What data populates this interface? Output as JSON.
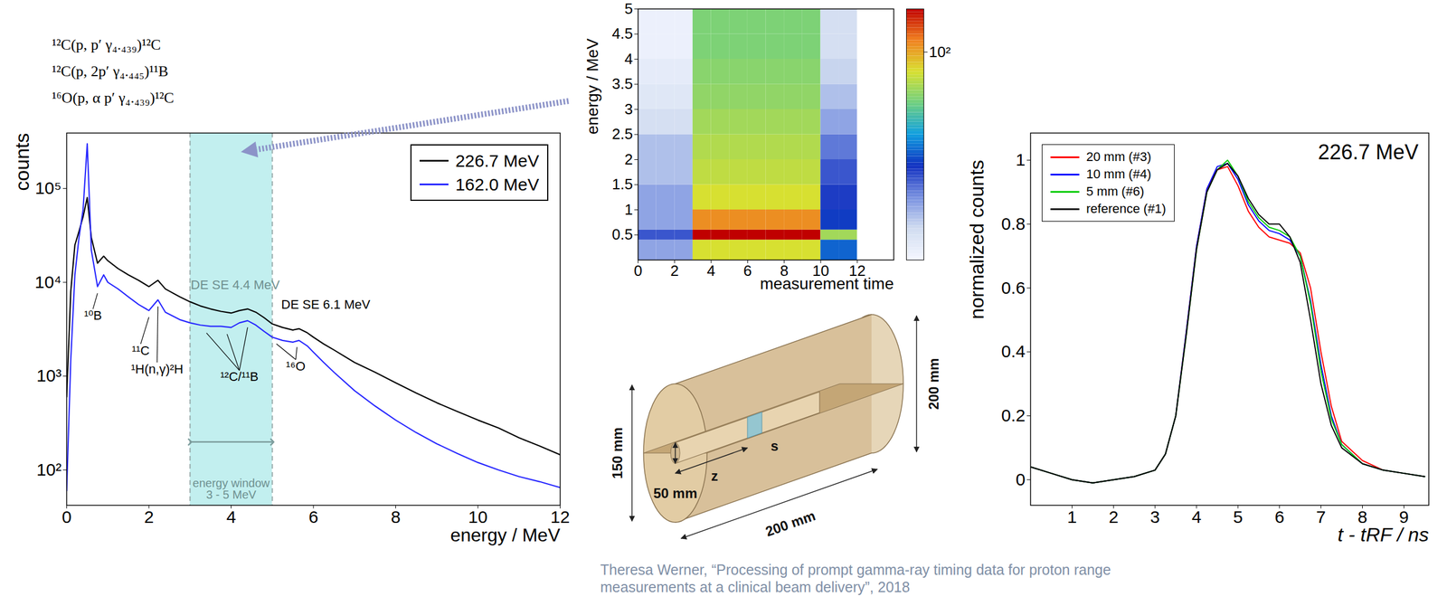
{
  "reactions": [
    "¹²C(p, p′ γ₄.₄₃₉)¹²C",
    "¹²C(p, 2p′ γ₄.₄₄₅)¹¹B",
    "¹⁶O(p, α p′ γ₄.₄₃₉)¹²C"
  ],
  "chart_data": [
    {
      "type": "line",
      "x_label": "energy / MeV",
      "y_label": "counts",
      "log": "y",
      "xlim": [
        0,
        12
      ],
      "xticks": [
        0,
        2,
        4,
        6,
        8,
        10,
        12
      ],
      "ylim": [
        42,
        390000
      ],
      "yticks": [
        {
          "value": 100,
          "label": "10²"
        },
        {
          "value": 1000,
          "label": "10³"
        },
        {
          "value": 10000,
          "label": "10⁴"
        },
        {
          "value": 100000,
          "label": "10⁵"
        }
      ],
      "legend": "top-right",
      "x": [
        0,
        0.1,
        0.2,
        0.3,
        0.4,
        0.5,
        0.6,
        0.75,
        0.9,
        1.0,
        1.25,
        1.5,
        1.75,
        2.0,
        2.22,
        2.4,
        2.75,
        3.0,
        3.25,
        3.5,
        3.75,
        4.0,
        4.2,
        4.4,
        4.6,
        4.8,
        5.0,
        5.25,
        5.5,
        5.65,
        5.85,
        6.0,
        6.25,
        6.5,
        7.0,
        7.5,
        8.0,
        8.5,
        9.0,
        9.5,
        10.0,
        10.5,
        11.0,
        11.5,
        12.0
      ],
      "series": [
        {
          "name": "226.7 MeV",
          "color": "#000000",
          "values": [
            600,
            8000,
            25000,
            35000,
            50000,
            80000,
            30000,
            16000,
            19000,
            17000,
            14000,
            12000,
            10500,
            9000,
            10500,
            8500,
            7000,
            6200,
            5600,
            5200,
            4900,
            4700,
            5000,
            5200,
            4800,
            4200,
            3600,
            3300,
            3100,
            3200,
            2900,
            2600,
            2200,
            1900,
            1400,
            1100,
            850,
            660,
            520,
            420,
            340,
            280,
            220,
            180,
            145
          ]
        },
        {
          "name": "162.0 MeV",
          "color": "#2626ff",
          "values": [
            60,
            1500,
            12000,
            30000,
            60000,
            300000,
            22000,
            9000,
            12000,
            10000,
            8500,
            7000,
            5800,
            5000,
            6500,
            4800,
            4000,
            3700,
            3500,
            3400,
            3400,
            3300,
            3700,
            3900,
            3500,
            3000,
            2600,
            2400,
            2300,
            2400,
            2100,
            1800,
            1400,
            1100,
            700,
            480,
            340,
            250,
            190,
            150,
            120,
            100,
            85,
            75,
            65
          ]
        }
      ],
      "energy_window": {
        "range": [
          3,
          5
        ],
        "label": [
          "energy window",
          "3 - 5 MeV"
        ]
      },
      "annotations": [
        {
          "text": "DE SE 4.4 MeV",
          "x": 4.1,
          "y": 11000,
          "color": "#6f9090"
        },
        {
          "text": "DE SE 6.1 MeV",
          "x": 6.3,
          "y": 6800,
          "color": "#000000"
        },
        {
          "text": "¹⁰B",
          "x": 0.64,
          "y": 5200,
          "targets": [
            0.75
          ]
        },
        {
          "text": "¹¹C",
          "x": 1.8,
          "y": 2200,
          "targets": [
            2.0
          ]
        },
        {
          "text": "¹H(n,γ)²H",
          "x": 2.2,
          "y": 1400,
          "targets": [
            2.22
          ]
        },
        {
          "text": "¹²C/¹¹B",
          "x": 4.2,
          "y": 1150,
          "targets": [
            3.4,
            3.9,
            4.4
          ]
        },
        {
          "text": "¹⁶O",
          "x": 5.57,
          "y": 1500,
          "targets": [
            5.1,
            5.6
          ]
        }
      ]
    },
    {
      "type": "heatmap",
      "x_label": "measurement time",
      "y_label": "energy / MeV",
      "xlim": [
        0,
        14
      ],
      "xticks": [
        0,
        2,
        4,
        6,
        8,
        10,
        12
      ],
      "ylim": [
        0,
        5
      ],
      "yticks": [
        0.5,
        1,
        1.5,
        2,
        2.5,
        3,
        3.5,
        4,
        4.5,
        5
      ],
      "x_edges": [
        0,
        1,
        2,
        3,
        4,
        5,
        6,
        7,
        8,
        9,
        10,
        11,
        12
      ],
      "y_edges": [
        0,
        0.4,
        0.6,
        1,
        1.5,
        2,
        2.5,
        3,
        3.5,
        4,
        4.5,
        5
      ],
      "cells": [
        [
          2,
          2,
          2,
          60,
          60,
          60,
          60,
          60,
          60,
          60,
          8,
          8
        ],
        [
          4,
          4,
          4,
          300,
          300,
          300,
          300,
          300,
          300,
          300,
          40,
          40
        ],
        [
          2,
          2,
          2,
          120,
          120,
          120,
          120,
          120,
          120,
          120,
          6,
          6
        ],
        [
          2,
          2,
          2,
          60,
          60,
          60,
          60,
          60,
          60,
          60,
          5,
          5
        ],
        [
          1.5,
          1.5,
          1.5,
          50,
          50,
          50,
          50,
          50,
          50,
          50,
          4,
          4
        ],
        [
          1.5,
          1.5,
          1.5,
          45,
          45,
          45,
          45,
          45,
          45,
          45,
          3,
          3
        ],
        [
          1,
          1,
          1,
          40,
          40,
          40,
          40,
          40,
          40,
          40,
          2,
          2
        ],
        [
          0.8,
          0.8,
          0.8,
          35,
          35,
          35,
          35,
          35,
          35,
          35,
          1.5,
          1.5
        ],
        [
          0.7,
          0.7,
          0.7,
          33,
          33,
          33,
          33,
          33,
          33,
          33,
          1.2,
          1.2
        ],
        [
          0.6,
          0.6,
          0.6,
          30,
          30,
          30,
          30,
          30,
          30,
          30,
          1,
          1
        ],
        [
          0.6,
          0.6,
          0.6,
          30,
          30,
          30,
          30,
          30,
          30,
          30,
          1,
          1
        ]
      ],
      "colorbar": {
        "range": [
          0.5,
          300
        ],
        "ticks": [
          {
            "value": 100,
            "label": "10²"
          }
        ],
        "log": true
      }
    },
    {
      "type": "line",
      "title": "226.7 MeV",
      "x_label": "t - tRF / ns",
      "y_label": "normalized counts",
      "xlim": [
        0,
        9.6
      ],
      "xticks": [
        1,
        2,
        3,
        4,
        5,
        6,
        7,
        8,
        9
      ],
      "ylim": [
        -0.08,
        1.085
      ],
      "yticks": [
        0,
        0.2,
        0.4,
        0.6,
        0.8,
        1
      ],
      "legend": "top-left",
      "x": [
        0,
        0.5,
        1,
        1.5,
        2,
        2.5,
        3,
        3.25,
        3.5,
        3.75,
        4,
        4.25,
        4.5,
        4.75,
        5,
        5.25,
        5.5,
        5.75,
        6,
        6.25,
        6.5,
        6.75,
        7,
        7.25,
        7.5,
        8,
        8.5,
        9,
        9.5
      ],
      "series": [
        {
          "name": "20 mm (#3)",
          "color": "#ff0000",
          "values": [
            0.04,
            0.02,
            0.0,
            -0.01,
            0.0,
            0.01,
            0.03,
            0.08,
            0.2,
            0.46,
            0.73,
            0.91,
            0.97,
            0.98,
            0.92,
            0.84,
            0.79,
            0.76,
            0.75,
            0.74,
            0.71,
            0.6,
            0.4,
            0.23,
            0.12,
            0.06,
            0.03,
            0.02,
            0.01
          ]
        },
        {
          "name": "10 mm (#4)",
          "color": "#0000ff",
          "values": [
            0.04,
            0.02,
            0.0,
            -0.01,
            0.0,
            0.01,
            0.03,
            0.08,
            0.2,
            0.46,
            0.73,
            0.91,
            0.98,
            0.99,
            0.94,
            0.86,
            0.81,
            0.78,
            0.77,
            0.75,
            0.7,
            0.56,
            0.36,
            0.2,
            0.11,
            0.05,
            0.03,
            0.02,
            0.01
          ]
        },
        {
          "name": "5 mm (#6)",
          "color": "#00cc00",
          "values": [
            0.04,
            0.02,
            0.0,
            -0.01,
            0.0,
            0.01,
            0.03,
            0.08,
            0.2,
            0.45,
            0.72,
            0.9,
            0.97,
            1.0,
            0.95,
            0.87,
            0.82,
            0.79,
            0.78,
            0.76,
            0.7,
            0.55,
            0.34,
            0.19,
            0.11,
            0.05,
            0.03,
            0.02,
            0.01
          ]
        },
        {
          "name": "reference (#1)",
          "color": "#000000",
          "values": [
            0.04,
            0.02,
            0.0,
            -0.01,
            0.0,
            0.01,
            0.03,
            0.08,
            0.2,
            0.45,
            0.72,
            0.9,
            0.97,
            0.99,
            0.95,
            0.88,
            0.83,
            0.8,
            0.8,
            0.76,
            0.68,
            0.5,
            0.3,
            0.17,
            0.1,
            0.05,
            0.03,
            0.02,
            0.01
          ]
        }
      ]
    }
  ],
  "diagram": {
    "labels": [
      "50 mm",
      "z",
      "s",
      "200 mm",
      "200 mm",
      "150 mm"
    ]
  },
  "citation": "Theresa Werner, “Processing of prompt gamma-ray timing data for proton range measurements at a clinical beam delivery”, 2018"
}
